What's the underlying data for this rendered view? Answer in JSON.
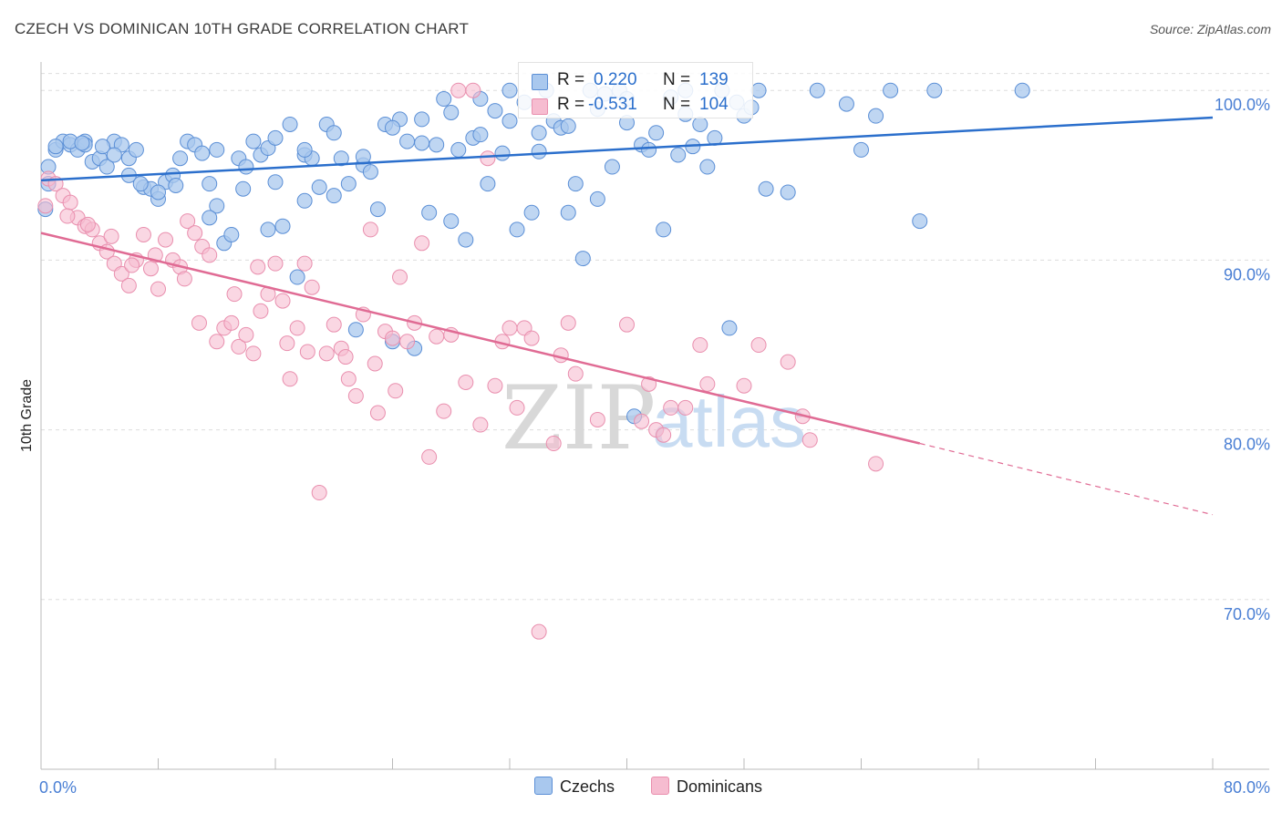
{
  "title": "CZECH VS DOMINICAN 10TH GRADE CORRELATION CHART",
  "source": "Source: ZipAtlas.com",
  "watermark": {
    "zip": "ZIP",
    "atlas": "atlas"
  },
  "legend": {
    "rows": [
      {
        "r_label": "R =",
        "r_value": "0.220",
        "n_label": "N =",
        "n_value": "139"
      },
      {
        "r_label": "R =",
        "r_value": "-0.531",
        "n_label": "N =",
        "n_value": "104"
      }
    ]
  },
  "bottom_legend": {
    "czechs": "Czechs",
    "dominicans": "Dominicans"
  },
  "colors": {
    "czech_fill": "#a9c8ee",
    "czech_stroke": "#5b8fd6",
    "czech_line": "#2b6fcc",
    "dominican_fill": "#f6bcd0",
    "dominican_stroke": "#e98fae",
    "dominican_line": "#e06b94",
    "axis_text": "#4a7fd4",
    "grid": "#dddddd"
  },
  "chart_data": {
    "type": "scatter",
    "title": "CZECH VS DOMINICAN 10TH GRADE CORRELATION CHART",
    "xlabel": "",
    "ylabel": "10th Grade",
    "xlim": [
      0,
      80
    ],
    "ylim": [
      60,
      102
    ],
    "x_tick_labels": [
      "0.0%",
      "80.0%"
    ],
    "y_ticks": [
      70,
      80,
      90,
      100
    ],
    "y_tick_labels": [
      "70.0%",
      "80.0%",
      "90.0%",
      "100.0%"
    ],
    "grid": true,
    "series": [
      {
        "name": "Czechs",
        "r": 0.22,
        "n": 139,
        "trend": {
          "x0": 0,
          "y0": 94.7,
          "x1": 80,
          "y1": 98.4
        },
        "points": [
          [
            0.5,
            94.5
          ],
          [
            0.3,
            93.0
          ],
          [
            0.5,
            95.5
          ],
          [
            1,
            96.5
          ],
          [
            1.5,
            97
          ],
          [
            2,
            96.8
          ],
          [
            2.5,
            96.5
          ],
          [
            3,
            97
          ],
          [
            3.5,
            95.8
          ],
          [
            4,
            96
          ],
          [
            4.5,
            95.5
          ],
          [
            5,
            97
          ],
          [
            5.5,
            96.8
          ],
          [
            6,
            96
          ],
          [
            6.5,
            96.5
          ],
          [
            7,
            94.3
          ],
          [
            7.5,
            94.2
          ],
          [
            8,
            93.6
          ],
          [
            8.5,
            94.6
          ],
          [
            9,
            95
          ],
          [
            9.5,
            96
          ],
          [
            10,
            97
          ],
          [
            10.5,
            96.8
          ],
          [
            11,
            96.3
          ],
          [
            11.5,
            94.5
          ],
          [
            12,
            93.2
          ],
          [
            12.5,
            91
          ],
          [
            13,
            91.5
          ],
          [
            13.5,
            96
          ],
          [
            14,
            95.5
          ],
          [
            14.5,
            97
          ],
          [
            15,
            96.2
          ],
          [
            15.5,
            96.6
          ],
          [
            16,
            94.6
          ],
          [
            16.5,
            92
          ],
          [
            17,
            98
          ],
          [
            17.5,
            89
          ],
          [
            18,
            96.2
          ],
          [
            18.5,
            96
          ],
          [
            19,
            94.3
          ],
          [
            19.5,
            98
          ],
          [
            20,
            93.8
          ],
          [
            20.5,
            96
          ],
          [
            21,
            94.5
          ],
          [
            21.5,
            85.9
          ],
          [
            22,
            95.6
          ],
          [
            22.5,
            95.2
          ],
          [
            23,
            93
          ],
          [
            23.5,
            98
          ],
          [
            24,
            85.2
          ],
          [
            24.5,
            98.3
          ],
          [
            25,
            97
          ],
          [
            25.5,
            84.8
          ],
          [
            26,
            98.3
          ],
          [
            26.5,
            92.8
          ],
          [
            27,
            96.8
          ],
          [
            27.5,
            99.5
          ],
          [
            28,
            92.3
          ],
          [
            28.5,
            96.5
          ],
          [
            29,
            91.2
          ],
          [
            29.5,
            97.2
          ],
          [
            30,
            99.5
          ],
          [
            30.5,
            94.5
          ],
          [
            31,
            98.8
          ],
          [
            31.5,
            96.3
          ],
          [
            32,
            100
          ],
          [
            32.5,
            91.8
          ],
          [
            33,
            99.3
          ],
          [
            33.5,
            92.8
          ],
          [
            34,
            97.5
          ],
          [
            34.5,
            100
          ],
          [
            35,
            98.2
          ],
          [
            35.5,
            97.8
          ],
          [
            36,
            92.8
          ],
          [
            36.5,
            94.5
          ],
          [
            37,
            90.1
          ],
          [
            37.5,
            100
          ],
          [
            38,
            93.6
          ],
          [
            38.5,
            99.8
          ],
          [
            39,
            95.5
          ],
          [
            39.5,
            100
          ],
          [
            40,
            99.5
          ],
          [
            40.5,
            80.8
          ],
          [
            41,
            96.8
          ],
          [
            41.5,
            96.5
          ],
          [
            42,
            97.5
          ],
          [
            42.5,
            91.8
          ],
          [
            43,
            99.6
          ],
          [
            43.5,
            96.2
          ],
          [
            44,
            100
          ],
          [
            44.5,
            96.7
          ],
          [
            45,
            98
          ],
          [
            45.5,
            95.5
          ],
          [
            46,
            97.2
          ],
          [
            46.5,
            100
          ],
          [
            47,
            86
          ],
          [
            47.5,
            99.3
          ],
          [
            48,
            98.5
          ],
          [
            48.5,
            99
          ],
          [
            49,
            100
          ],
          [
            49.5,
            94.2
          ],
          [
            51,
            94
          ],
          [
            53,
            100
          ],
          [
            55,
            99.2
          ],
          [
            56,
            96.5
          ],
          [
            57,
            98.5
          ],
          [
            58,
            100
          ],
          [
            60,
            92.3
          ],
          [
            61,
            100
          ],
          [
            67,
            100
          ],
          [
            2,
            97
          ],
          [
            3,
            96.8
          ],
          [
            5,
            96.2
          ],
          [
            6,
            95
          ],
          [
            8,
            94
          ],
          [
            12,
            96.5
          ],
          [
            16,
            97.2
          ],
          [
            18,
            96.5
          ],
          [
            20,
            97.5
          ],
          [
            22,
            96.1
          ],
          [
            24,
            97.8
          ],
          [
            26,
            96.9
          ],
          [
            28,
            98.7
          ],
          [
            30,
            97.4
          ],
          [
            32,
            98.2
          ],
          [
            34,
            96.4
          ],
          [
            36,
            97.9
          ],
          [
            38,
            98.9
          ],
          [
            40,
            98.1
          ],
          [
            44,
            98.6
          ],
          [
            1,
            96.7
          ],
          [
            2.8,
            96.9
          ],
          [
            4.2,
            96.7
          ],
          [
            6.8,
            94.5
          ],
          [
            9.2,
            94.4
          ],
          [
            11.5,
            92.5
          ],
          [
            13.8,
            94.2
          ],
          [
            15.5,
            91.8
          ],
          [
            18,
            93.5
          ]
        ]
      },
      {
        "name": "Dominicans",
        "r": -0.531,
        "n": 104,
        "trend": {
          "x0": 0,
          "y0": 91.6,
          "x1": 60,
          "y1": 79.2,
          "dash_x1": 80,
          "dash_y1": 75.0
        },
        "points": [
          [
            0.3,
            93.2
          ],
          [
            0.5,
            94.8
          ],
          [
            1,
            94.5
          ],
          [
            1.5,
            93.8
          ],
          [
            2,
            93.4
          ],
          [
            2.5,
            92.5
          ],
          [
            3,
            92
          ],
          [
            3.5,
            91.8
          ],
          [
            4,
            91
          ],
          [
            4.5,
            90.5
          ],
          [
            5,
            89.8
          ],
          [
            5.5,
            89.2
          ],
          [
            6,
            88.5
          ],
          [
            6.5,
            90
          ],
          [
            7,
            91.5
          ],
          [
            7.5,
            89.5
          ],
          [
            8,
            88.3
          ],
          [
            8.5,
            91.2
          ],
          [
            9,
            90
          ],
          [
            9.5,
            89.6
          ],
          [
            10,
            92.3
          ],
          [
            10.5,
            91.6
          ],
          [
            11,
            90.8
          ],
          [
            11.5,
            90.3
          ],
          [
            12,
            85.2
          ],
          [
            12.5,
            86
          ],
          [
            13,
            86.3
          ],
          [
            13.5,
            84.9
          ],
          [
            14,
            85.6
          ],
          [
            14.5,
            84.5
          ],
          [
            15,
            87
          ],
          [
            15.5,
            88
          ],
          [
            16,
            89.8
          ],
          [
            16.5,
            87.6
          ],
          [
            17,
            83
          ],
          [
            17.5,
            86
          ],
          [
            18,
            89.8
          ],
          [
            18.5,
            88.4
          ],
          [
            19,
            76.3
          ],
          [
            19.5,
            84.5
          ],
          [
            20,
            86.2
          ],
          [
            20.5,
            84.8
          ],
          [
            21,
            83
          ],
          [
            21.5,
            82
          ],
          [
            22,
            86.8
          ],
          [
            22.5,
            91.8
          ],
          [
            23,
            81
          ],
          [
            23.5,
            85.8
          ],
          [
            24,
            85.4
          ],
          [
            24.5,
            89
          ],
          [
            25,
            85.2
          ],
          [
            25.5,
            86.3
          ],
          [
            26,
            91
          ],
          [
            26.5,
            78.4
          ],
          [
            27,
            85.5
          ],
          [
            27.5,
            81.1
          ],
          [
            28,
            85.6
          ],
          [
            28.5,
            100
          ],
          [
            29,
            82.8
          ],
          [
            29.5,
            100
          ],
          [
            30,
            80.3
          ],
          [
            30.5,
            96
          ],
          [
            31,
            82.6
          ],
          [
            31.5,
            85.2
          ],
          [
            32,
            86
          ],
          [
            32.5,
            81.3
          ],
          [
            33,
            86
          ],
          [
            33.5,
            85.4
          ],
          [
            34,
            68.1
          ],
          [
            35,
            79.2
          ],
          [
            35.5,
            84.4
          ],
          [
            36,
            86.3
          ],
          [
            36.5,
            83.3
          ],
          [
            38,
            80.6
          ],
          [
            40,
            86.2
          ],
          [
            41,
            80.5
          ],
          [
            41.5,
            82.7
          ],
          [
            42,
            80
          ],
          [
            42.5,
            79.7
          ],
          [
            43,
            81.3
          ],
          [
            44,
            81.3
          ],
          [
            45,
            85
          ],
          [
            45.5,
            82.7
          ],
          [
            48,
            82.6
          ],
          [
            49,
            85
          ],
          [
            51,
            84
          ],
          [
            52,
            80.8
          ],
          [
            52.5,
            79.4
          ],
          [
            57,
            78
          ],
          [
            1.8,
            92.6
          ],
          [
            3.2,
            92.1
          ],
          [
            4.8,
            91.4
          ],
          [
            6.2,
            89.7
          ],
          [
            7.8,
            90.3
          ],
          [
            9.8,
            88.9
          ],
          [
            10.8,
            86.3
          ],
          [
            13.2,
            88
          ],
          [
            14.8,
            89.6
          ],
          [
            16.8,
            85.1
          ],
          [
            18.2,
            84.6
          ],
          [
            20.8,
            84.3
          ],
          [
            22.8,
            83.9
          ],
          [
            24.2,
            82.3
          ]
        ]
      }
    ]
  }
}
